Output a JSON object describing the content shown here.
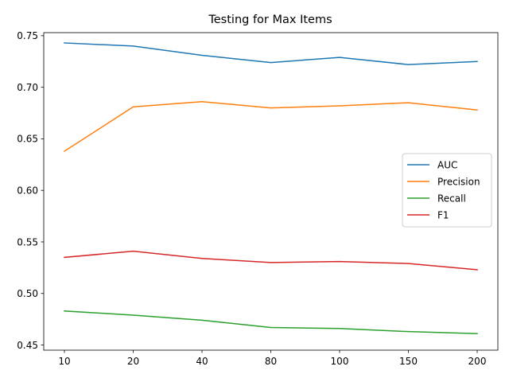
{
  "chart_data": {
    "type": "line",
    "title": "Testing for Max Items",
    "xlabel": "",
    "ylabel": "",
    "categories": [
      "10",
      "20",
      "40",
      "80",
      "100",
      "150",
      "200"
    ],
    "ylim": [
      0.445,
      0.753
    ],
    "yticks": [
      0.45,
      0.5,
      0.55,
      0.6,
      0.65,
      0.7,
      0.75
    ],
    "ytick_labels": [
      "0.45",
      "0.50",
      "0.55",
      "0.60",
      "0.65",
      "0.70",
      "0.75"
    ],
    "grid": false,
    "legend_position": "center-right",
    "series": [
      {
        "name": "AUC",
        "color": "#1f77b4",
        "values": [
          0.743,
          0.74,
          0.731,
          0.724,
          0.729,
          0.722,
          0.725
        ]
      },
      {
        "name": "Precision",
        "color": "#ff7f0e",
        "values": [
          0.638,
          0.681,
          0.686,
          0.68,
          0.682,
          0.685,
          0.678
        ]
      },
      {
        "name": "Recall",
        "color": "#2ca02c",
        "values": [
          0.483,
          0.479,
          0.474,
          0.467,
          0.466,
          0.463,
          0.461
        ]
      },
      {
        "name": "F1",
        "color": "#d62728",
        "values": [
          0.535,
          0.541,
          0.534,
          0.53,
          0.531,
          0.529,
          0.523
        ]
      }
    ]
  }
}
